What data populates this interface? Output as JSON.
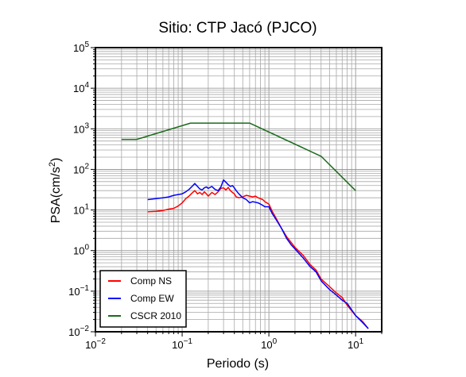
{
  "chart_data": {
    "type": "line",
    "title": "Sitio: CTP Jacó (PJCO)",
    "xlabel": "Periodo (s)",
    "ylabel": {
      "base": "PSA(cm/s",
      "sup": "2",
      "close": ")"
    },
    "xscale": "log",
    "yscale": "log",
    "xlim": [
      0.01,
      20
    ],
    "ylim": [
      0.01,
      100000
    ],
    "grid": true,
    "legend_position": "bottom-left",
    "x_ticks": [
      {
        "value": 0.01,
        "base": "10",
        "exp": "−2"
      },
      {
        "value": 0.1,
        "base": "10",
        "exp": "−1"
      },
      {
        "value": 1,
        "base": "10",
        "exp": "0"
      },
      {
        "value": 10,
        "base": "10",
        "exp": "1"
      }
    ],
    "y_ticks": [
      {
        "value": 0.01,
        "base": "10",
        "exp": "−2"
      },
      {
        "value": 0.1,
        "base": "10",
        "exp": "−1"
      },
      {
        "value": 1,
        "base": "10",
        "exp": "0"
      },
      {
        "value": 10,
        "base": "10",
        "exp": "1"
      },
      {
        "value": 100,
        "base": "10",
        "exp": "2"
      },
      {
        "value": 1000,
        "base": "10",
        "exp": "3"
      },
      {
        "value": 10000,
        "base": "10",
        "exp": "4"
      },
      {
        "value": 100000,
        "base": "10",
        "exp": "5"
      }
    ],
    "series": [
      {
        "name": "Comp NS",
        "color": "#ff0000",
        "x": [
          0.04,
          0.05,
          0.06,
          0.07,
          0.08,
          0.09,
          0.1,
          0.11,
          0.12,
          0.13,
          0.14,
          0.15,
          0.16,
          0.17,
          0.18,
          0.19,
          0.2,
          0.22,
          0.24,
          0.26,
          0.28,
          0.3,
          0.32,
          0.34,
          0.36,
          0.38,
          0.4,
          0.42,
          0.45,
          0.5,
          0.55,
          0.6,
          0.65,
          0.7,
          0.75,
          0.8,
          0.85,
          0.9,
          1.0,
          1.1,
          1.2,
          1.4,
          1.6,
          1.8,
          2.0,
          2.5,
          3.0,
          3.5,
          4.0,
          5.0,
          6.0,
          7.0,
          8.0,
          10.0,
          12.0,
          14.0
        ],
        "y": [
          9,
          9.3,
          9.7,
          10.5,
          11,
          12.5,
          15,
          19,
          22,
          26,
          30,
          25,
          27,
          24,
          28,
          25,
          22,
          27,
          24,
          28,
          34,
          35,
          31,
          36,
          30,
          27,
          25,
          21,
          20,
          21,
          23,
          22,
          21,
          22,
          20,
          19,
          18,
          16,
          14,
          9,
          6.5,
          3.5,
          2.2,
          1.6,
          1.2,
          0.75,
          0.45,
          0.33,
          0.2,
          0.13,
          0.09,
          0.07,
          0.045,
          0.025,
          0.018,
          0.012
        ]
      },
      {
        "name": "Comp EW",
        "color": "#0000ff",
        "x": [
          0.04,
          0.05,
          0.06,
          0.07,
          0.08,
          0.09,
          0.1,
          0.11,
          0.12,
          0.13,
          0.14,
          0.15,
          0.16,
          0.17,
          0.18,
          0.19,
          0.2,
          0.22,
          0.24,
          0.26,
          0.28,
          0.3,
          0.32,
          0.34,
          0.36,
          0.38,
          0.4,
          0.42,
          0.45,
          0.5,
          0.55,
          0.6,
          0.65,
          0.7,
          0.75,
          0.8,
          0.85,
          0.9,
          1.0,
          1.1,
          1.2,
          1.4,
          1.6,
          1.8,
          2.0,
          2.5,
          3.0,
          3.5,
          4.0,
          5.0,
          6.0,
          7.0,
          8.0,
          10.0,
          12.0,
          14.0
        ],
        "y": [
          18,
          19,
          20,
          21,
          23,
          24,
          25,
          28,
          32,
          38,
          45,
          38,
          33,
          31,
          35,
          37,
          34,
          38,
          32,
          30,
          37,
          55,
          48,
          42,
          38,
          40,
          35,
          30,
          25,
          20,
          18,
          15,
          16,
          15.5,
          15,
          14,
          13,
          12,
          12,
          8,
          6,
          3.5,
          2.0,
          1.4,
          1.1,
          0.65,
          0.4,
          0.3,
          0.18,
          0.11,
          0.08,
          0.06,
          0.05,
          0.025,
          0.017,
          0.012
        ]
      },
      {
        "name": "CSCR 2010",
        "color": "#1a6b1a",
        "x": [
          0.02,
          0.03,
          0.125,
          0.6,
          4.0,
          10.0
        ],
        "y": [
          550,
          550,
          1380,
          1380,
          210,
          30
        ]
      }
    ]
  }
}
